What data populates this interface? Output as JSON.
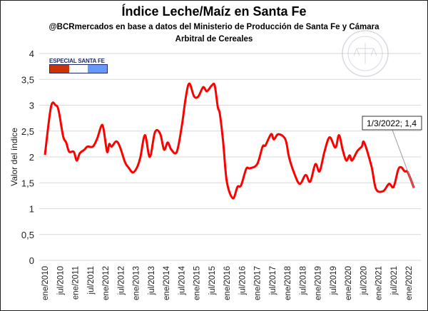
{
  "chart_data": {
    "type": "line",
    "title": "Índice Leche/Maíz en Santa Fe",
    "subtitle": "@BCRmercados en base a datos del Ministerio de Producción de Santa Fe y Cámara Arbitral de Cereales",
    "xlabel": "",
    "ylabel": "Valor del índice",
    "ylim": [
      0,
      4
    ],
    "yticks": [
      0,
      0.5,
      1,
      1.5,
      2,
      2.5,
      3,
      3.5,
      4
    ],
    "ytick_labels": [
      "0",
      "0,5",
      "1",
      "1,5",
      "2",
      "2,5",
      "3",
      "3,5",
      "4"
    ],
    "xtick_labels": [
      "ene/2010",
      "jul/2010",
      "ene/2011",
      "jul/2011",
      "ene/2012",
      "jul/2012",
      "ene/2013",
      "jul/2013",
      "ene/2014",
      "jul/2014",
      "ene/2015",
      "jul/2015",
      "ene/2016",
      "jul/2016",
      "ene/2017",
      "jul/2017",
      "ene/2018",
      "jul/2018",
      "ene/2019",
      "jul/2019",
      "ene/2020",
      "jul/2020",
      "ene/2021",
      "jul/2021",
      "ene/2022"
    ],
    "xlim_years": [
      2010.0,
      2022.2
    ],
    "grid": true,
    "series": [
      {
        "name": "Índice Leche/Maíz",
        "color": "#ff0000",
        "x": [
          2010.0,
          2010.2,
          2010.35,
          2010.45,
          2010.6,
          2010.7,
          2010.8,
          2010.95,
          2011.05,
          2011.15,
          2011.3,
          2011.4,
          2011.58,
          2011.72,
          2011.86,
          2011.93,
          2012.05,
          2012.12,
          2012.2,
          2012.35,
          2012.47,
          2012.64,
          2012.75,
          2012.9,
          2013.04,
          2013.15,
          2013.3,
          2013.46,
          2013.63,
          2013.8,
          2013.93,
          2014.05,
          2014.17,
          2014.35,
          2014.52,
          2014.64,
          2014.76,
          2014.92,
          2015.06,
          2015.22,
          2015.34,
          2015.5,
          2015.6,
          2015.7,
          2015.77,
          2015.88,
          2016.0,
          2016.2,
          2016.35,
          2016.47,
          2016.64,
          2016.76,
          2017.0,
          2017.18,
          2017.27,
          2017.46,
          2017.55,
          2017.7,
          2017.93,
          2018.05,
          2018.2,
          2018.4,
          2018.6,
          2018.75,
          2018.92,
          2019.06,
          2019.22,
          2019.39,
          2019.58,
          2019.7,
          2019.82,
          2019.94,
          2020.05,
          2020.13,
          2020.3,
          2020.45,
          2020.53,
          2020.77,
          2020.92,
          2021.16,
          2021.35,
          2021.5,
          2021.65,
          2021.75,
          2021.87,
          2021.95,
          2022.05,
          2022.17
        ],
        "values": [
          2.04,
          2.97,
          3.0,
          2.9,
          2.4,
          2.28,
          2.1,
          2.1,
          1.93,
          2.07,
          2.14,
          2.2,
          2.2,
          2.35,
          2.6,
          2.55,
          2.1,
          2.25,
          2.2,
          2.3,
          2.2,
          1.9,
          1.8,
          1.7,
          1.8,
          2.0,
          2.42,
          2.0,
          2.48,
          2.45,
          2.14,
          2.28,
          2.14,
          2.1,
          2.62,
          3.13,
          3.42,
          3.17,
          3.17,
          3.35,
          3.27,
          3.38,
          3.38,
          2.97,
          2.83,
          2.28,
          1.52,
          1.2,
          1.42,
          1.45,
          1.77,
          1.78,
          1.86,
          2.2,
          2.22,
          2.44,
          2.34,
          2.44,
          2.34,
          2.0,
          1.72,
          1.48,
          1.65,
          1.52,
          1.86,
          1.72,
          2.1,
          2.38,
          2.18,
          2.42,
          2.14,
          1.93,
          2.03,
          1.93,
          2.11,
          2.2,
          2.28,
          1.82,
          1.38,
          1.34,
          1.48,
          1.42,
          1.75,
          1.8,
          1.72,
          1.72,
          1.59,
          1.4
        ]
      }
    ],
    "annotations": [
      {
        "text": "1/3/2022; 1,4",
        "x": 2022.17,
        "y": 1.4
      }
    ],
    "legend": "none"
  },
  "badge": {
    "label": "ESPECIAL SANTA FE",
    "colors": [
      "#cc3300",
      "#ffffff",
      "#6699ff"
    ]
  },
  "watermark": {
    "text": "BOLSA DE COMERCIO DE ROSARIO"
  }
}
